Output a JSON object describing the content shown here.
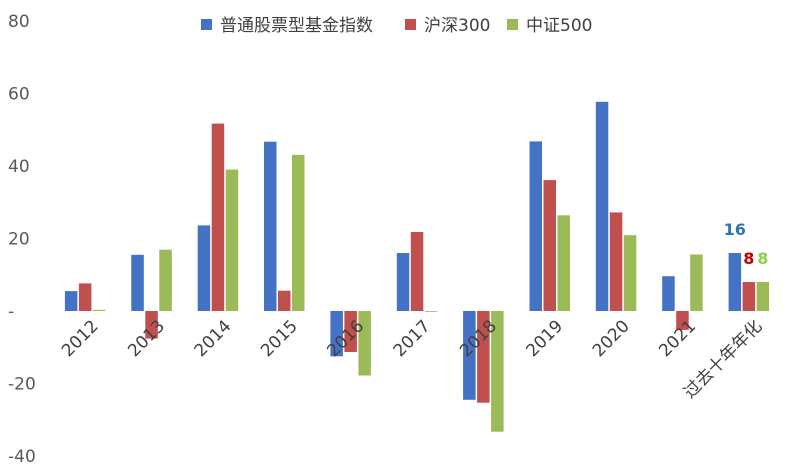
{
  "chart_data": {
    "type": "bar",
    "title": "",
    "xlabel": "",
    "ylabel": "",
    "ylim": [
      -40,
      80
    ],
    "yticks": [
      "-40",
      "-20",
      "-",
      "20",
      "40",
      "60",
      "80"
    ],
    "grid": false,
    "legend_position": "top",
    "categories": [
      "2012",
      "2013",
      "2014",
      "2015",
      "2016",
      "2017",
      "2018",
      "2019",
      "2020",
      "2021",
      "过去十年年化"
    ],
    "series": [
      {
        "name": "普通股票型基金指数",
        "color": "#4472C4",
        "values": [
          5.5,
          15.5,
          23.6,
          46.7,
          -12.5,
          16.0,
          -24.5,
          46.8,
          57.7,
          9.6,
          16
        ]
      },
      {
        "name": "沪深300",
        "color": "#C0504D",
        "values": [
          7.6,
          -7.6,
          51.7,
          5.6,
          -11.3,
          21.8,
          -25.3,
          36.1,
          27.2,
          -5.2,
          8
        ]
      },
      {
        "name": "中证500",
        "color": "#9BBB59",
        "values": [
          0.3,
          16.9,
          39.0,
          43.1,
          -17.8,
          -0.2,
          -33.3,
          26.4,
          20.9,
          15.6,
          8
        ]
      }
    ],
    "data_labels": [
      {
        "text": "16",
        "color": "#2E75B6"
      },
      {
        "text": "8",
        "color": "#C00000"
      },
      {
        "text": "8",
        "color": "#92D050"
      }
    ]
  }
}
